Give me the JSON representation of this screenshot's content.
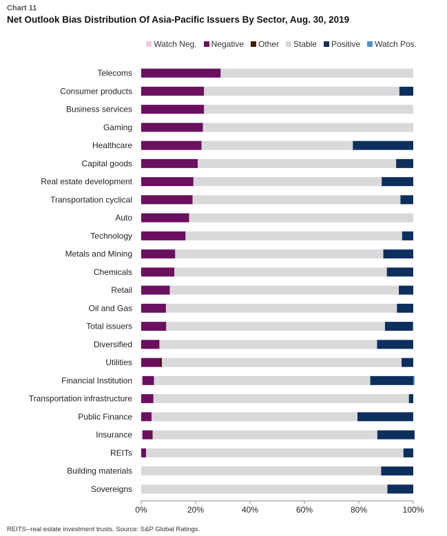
{
  "header": {
    "chart_label": "Chart 11",
    "title": "Net Outlook Bias Distribution Of Asia-Pacific Issuers By Sector, Aug. 30, 2019"
  },
  "footnote": "REITS--real estate investment trusts. Source: S&P Global Ratings.",
  "colors": {
    "watch_neg": "#f4c6dc",
    "negative": "#6b0f5f",
    "other": "#4a1a0c",
    "stable": "#d9d9d9",
    "positive": "#0d2f5e",
    "watch_pos": "#4e94c8"
  },
  "chart_data": {
    "type": "bar",
    "orientation": "horizontal",
    "stacked": true,
    "legend_position": "top-right",
    "grid": false,
    "xlim": [
      0,
      100
    ],
    "x_ticks": [
      "0%",
      "20%",
      "40%",
      "60%",
      "80%",
      "100%"
    ],
    "categories": [
      "Telecoms",
      "Consumer products",
      "Business services",
      "Gaming",
      "Healthcare",
      "Capital goods",
      "Real estate development",
      "Transportation cyclical",
      "Auto",
      "Technology",
      "Metals and Mining",
      "Chemicals",
      "Retail",
      "Oil and Gas",
      "Total issuers",
      "Diversified",
      "Utilities",
      "Financial Institution",
      "Transportation infrastructure",
      "Public Finance",
      "Insurance",
      "REITs",
      "Building materials",
      "Sovereigns"
    ],
    "series": [
      {
        "name": "Watch Neg.",
        "color_key": "watch_neg",
        "values": [
          0,
          0,
          0,
          0,
          0,
          0,
          0,
          0,
          0,
          0,
          0,
          0,
          0,
          0,
          0,
          0,
          0,
          0.5,
          0,
          0,
          0.5,
          0,
          0,
          0
        ]
      },
      {
        "name": "Negative",
        "color_key": "negative",
        "values": [
          29.2,
          23.1,
          23.1,
          22.7,
          22.2,
          20.8,
          19.2,
          18.9,
          17.6,
          16.3,
          12.5,
          12.2,
          10.5,
          9.1,
          9.0,
          6.7,
          6.7,
          4.2,
          4.5,
          3.8,
          3.3,
          1.8,
          0,
          0
        ]
      },
      {
        "name": "Other",
        "color_key": "other",
        "values": [
          0,
          0,
          0,
          0,
          0,
          0,
          0,
          0,
          0,
          0,
          0,
          0,
          0,
          0,
          0.2,
          0,
          0.9,
          0,
          0,
          0,
          0.4,
          0,
          0,
          0
        ]
      },
      {
        "name": "Stable",
        "color_key": "stable",
        "values": [
          70.8,
          71.8,
          76.9,
          77.3,
          55.6,
          72.9,
          69.2,
          76.4,
          82.4,
          79.6,
          76.5,
          78.1,
          84.2,
          84.9,
          80.4,
          80.0,
          88.1,
          79.5,
          93.9,
          75.7,
          82.6,
          94.6,
          88.2,
          90.5
        ]
      },
      {
        "name": "Positive",
        "color_key": "positive",
        "values": [
          0,
          5.1,
          0,
          0,
          22.2,
          6.3,
          11.6,
          4.7,
          0,
          4.1,
          11.0,
          9.7,
          5.3,
          6.0,
          10.3,
          13.3,
          4.3,
          15.8,
          1.6,
          20.5,
          13.7,
          3.6,
          11.8,
          9.5
        ]
      },
      {
        "name": "Watch Pos.",
        "color_key": "watch_pos",
        "values": [
          0,
          0,
          0,
          0,
          0,
          0,
          0,
          0,
          0,
          0,
          0,
          0,
          0,
          0,
          0.1,
          0,
          0,
          0.5,
          0,
          0,
          0,
          0,
          0,
          0
        ]
      }
    ]
  }
}
